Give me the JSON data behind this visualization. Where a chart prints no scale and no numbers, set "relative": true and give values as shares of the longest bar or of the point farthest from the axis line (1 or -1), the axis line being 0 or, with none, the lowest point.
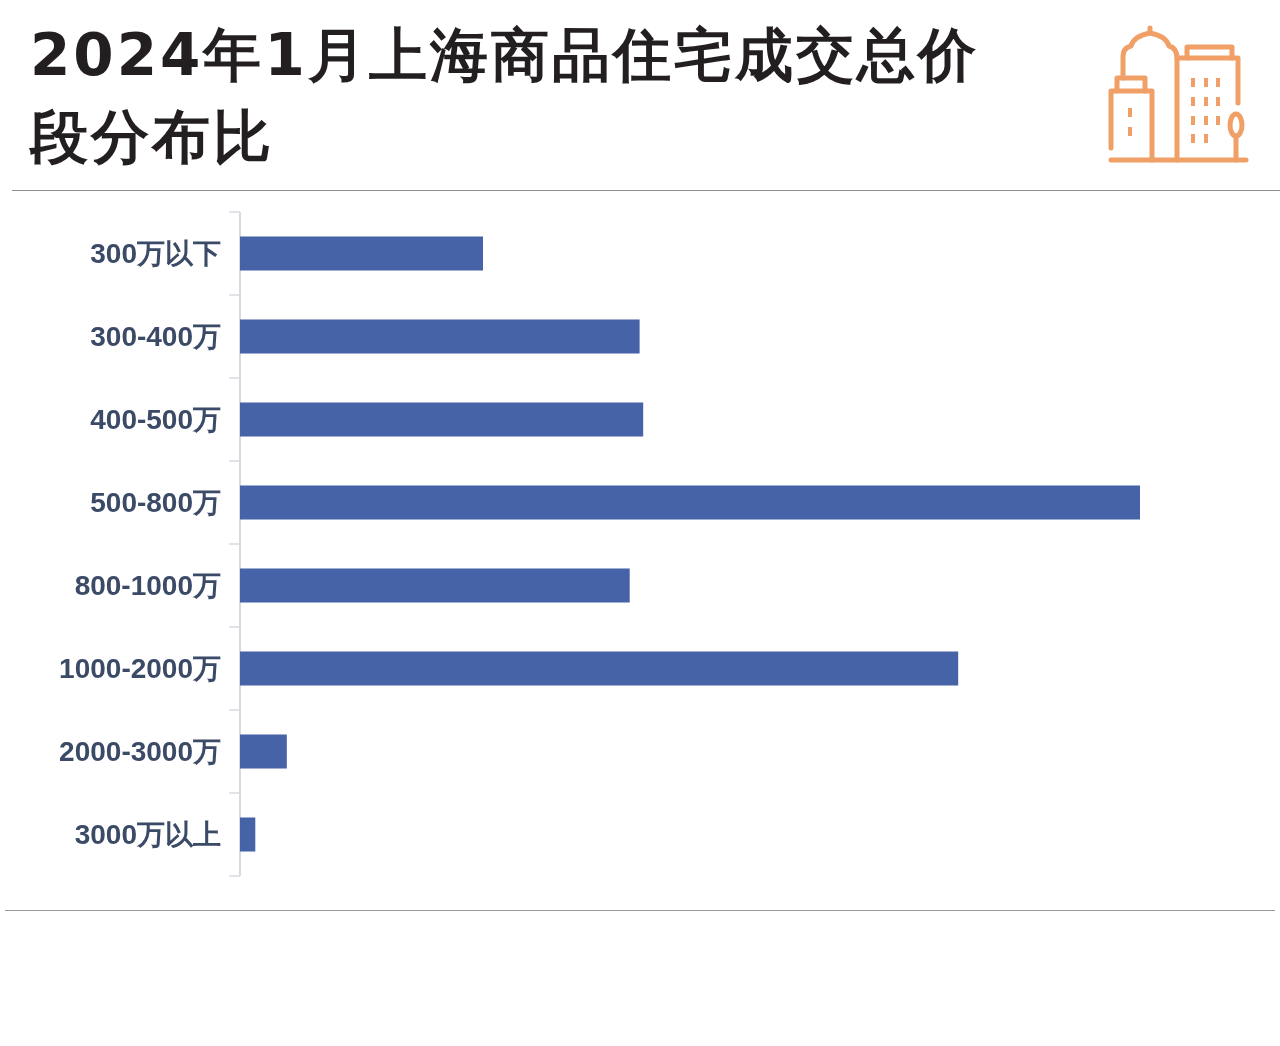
{
  "chart_data": {
    "type": "bar",
    "orientation": "horizontal",
    "relative": true,
    "title": "2024年1月上海商品住宅成交总价段分布比",
    "categories": [
      "300万以下",
      "300-400万",
      "400-500万",
      "500-800万",
      "800-1000万",
      "1000-2000万",
      "2000-3000万",
      "3000万以上"
    ],
    "values": [
      0.27,
      0.444,
      0.448,
      1,
      0.433,
      0.798,
      0.052,
      0.017
    ],
    "color": "#4763a8"
  }
}
